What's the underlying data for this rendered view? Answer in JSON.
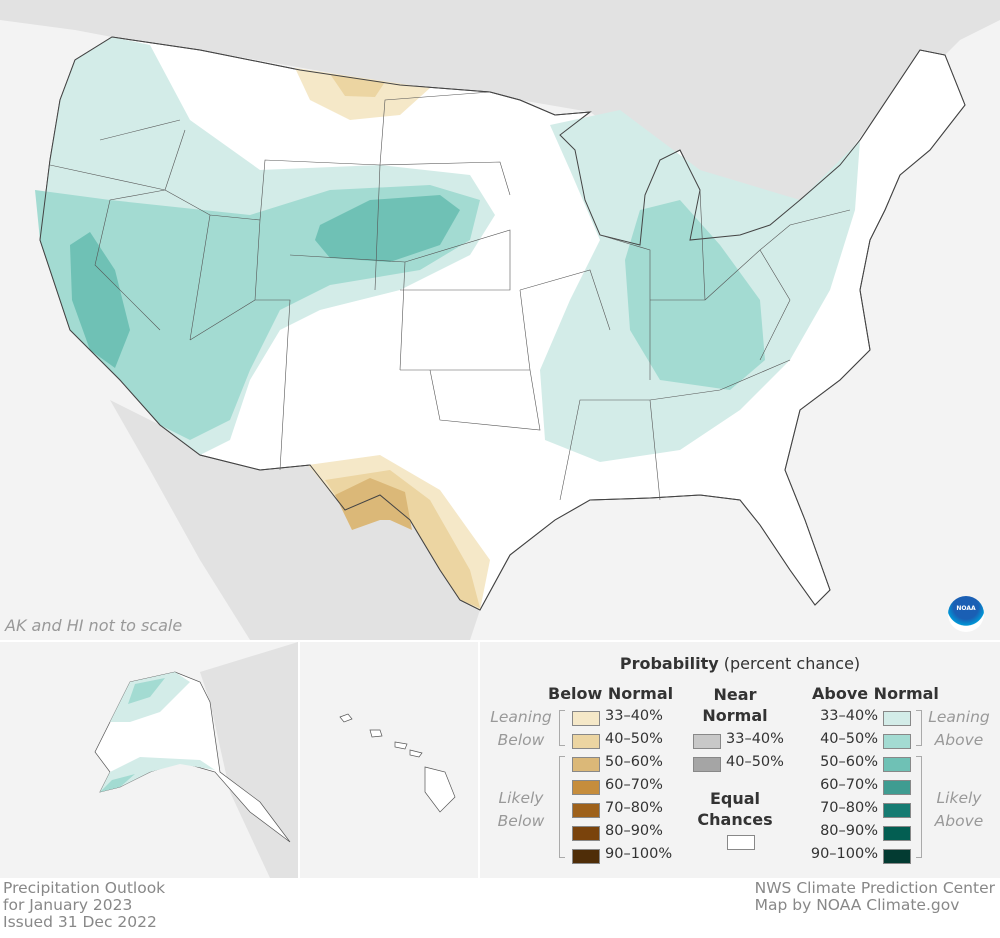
{
  "map": {
    "note": "AK and HI not to scale",
    "logo": "NOAA",
    "colors": {
      "ocean": "#f3f3f3",
      "land": "#e2e2e2",
      "us": "#ffffff",
      "above_33_40": "#d3ece8",
      "above_40_50": "#a3dbd2",
      "above_50_60": "#6fc1b5",
      "below_33_40": "#f5e8c8",
      "below_40_50": "#ecd5a2",
      "below_50_60": "#dbb878"
    }
  },
  "legend": {
    "title_bold": "Probability",
    "title_rest": "(percent chance)",
    "below": {
      "header": "Below Normal",
      "leaning": "Leaning Below",
      "likely": "Likely Below",
      "items": [
        {
          "range": "33–40%",
          "color": "#f5e8c8"
        },
        {
          "range": "40–50%",
          "color": "#ecd5a2"
        },
        {
          "range": "50–60%",
          "color": "#dbb878"
        },
        {
          "range": "60–70%",
          "color": "#c68d3c"
        },
        {
          "range": "70–80%",
          "color": "#9e611b"
        },
        {
          "range": "80–90%",
          "color": "#7a430c"
        },
        {
          "range": "90–100%",
          "color": "#4f2d08"
        }
      ]
    },
    "near": {
      "header": "Near Normal",
      "items": [
        {
          "range": "33–40%",
          "color": "#c8c8c8"
        },
        {
          "range": "40–50%",
          "color": "#a5a5a5"
        }
      ],
      "equal": "Equal Chances",
      "equal_color": "#ffffff"
    },
    "above": {
      "header": "Above Normal",
      "leaning": "Leaning Above",
      "likely": "Likely Above",
      "items": [
        {
          "range": "33–40%",
          "color": "#d3ece8"
        },
        {
          "range": "40–50%",
          "color": "#a3dbd2"
        },
        {
          "range": "50–60%",
          "color": "#6fc1b5"
        },
        {
          "range": "60–70%",
          "color": "#3f9c91"
        },
        {
          "range": "70–80%",
          "color": "#167b72"
        },
        {
          "range": "80–90%",
          "color": "#035e52"
        },
        {
          "range": "90–100%",
          "color": "#033b32"
        }
      ]
    }
  },
  "footer": {
    "left": [
      "Precipitation Outlook",
      "for January 2023",
      "Issued 31 Dec 2022"
    ],
    "right": [
      "NWS Climate Prediction Center",
      "Map by NOAA Climate.gov"
    ]
  }
}
